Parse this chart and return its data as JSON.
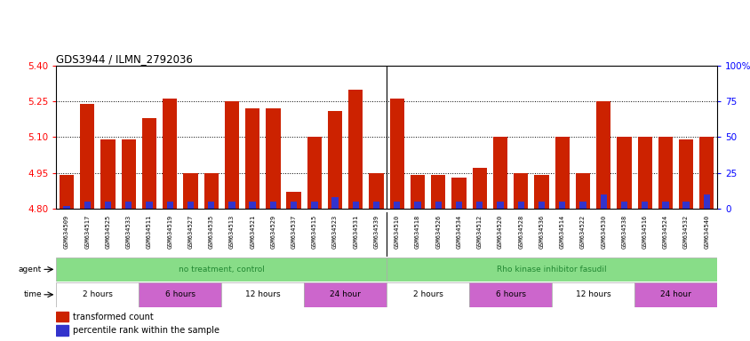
{
  "title": "GDS3944 / ILMN_2792036",
  "ylim_left": [
    4.8,
    5.4
  ],
  "ylim_right": [
    0,
    100
  ],
  "yticks_left": [
    4.8,
    4.95,
    5.1,
    5.25,
    5.4
  ],
  "yticks_right": [
    0,
    25,
    50,
    75,
    100
  ],
  "bar_width": 0.7,
  "bar_color_red": "#cc2200",
  "bar_color_blue": "#3333cc",
  "base": 4.8,
  "samples": [
    "GSM634509",
    "GSM634517",
    "GSM634525",
    "GSM634533",
    "GSM634511",
    "GSM634519",
    "GSM634527",
    "GSM634535",
    "GSM634513",
    "GSM634521",
    "GSM634529",
    "GSM634537",
    "GSM634515",
    "GSM634523",
    "GSM634531",
    "GSM634539",
    "GSM634510",
    "GSM634518",
    "GSM634526",
    "GSM634534",
    "GSM634512",
    "GSM634520",
    "GSM634528",
    "GSM634536",
    "GSM634514",
    "GSM634522",
    "GSM634530",
    "GSM634538",
    "GSM634516",
    "GSM634524",
    "GSM634532",
    "GSM634540"
  ],
  "red_values": [
    4.94,
    5.24,
    5.09,
    5.09,
    5.18,
    5.26,
    4.95,
    4.95,
    5.25,
    5.22,
    5.22,
    4.87,
    5.1,
    5.21,
    5.3,
    4.95,
    5.26,
    4.94,
    4.94,
    4.93,
    4.97,
    5.1,
    4.95,
    4.94,
    5.1,
    4.95,
    5.25,
    5.1,
    5.1,
    5.1,
    5.09,
    5.1
  ],
  "blue_values": [
    2,
    5,
    5,
    5,
    5,
    5,
    5,
    5,
    5,
    5,
    5,
    5,
    5,
    8,
    5,
    5,
    5,
    5,
    5,
    5,
    5,
    5,
    5,
    5,
    5,
    5,
    10,
    5,
    5,
    5,
    5,
    10
  ],
  "agent_labels": [
    "no treatment, control",
    "Rho kinase inhibitor fasudil"
  ],
  "time_groups": [
    {
      "label": "2 hours",
      "color": "#ffffff",
      "start": 0,
      "end": 4
    },
    {
      "label": "6 hours",
      "color": "#cc66cc",
      "start": 4,
      "end": 8
    },
    {
      "label": "12 hours",
      "color": "#ffffff",
      "start": 8,
      "end": 12
    },
    {
      "label": "24 hour",
      "color": "#cc66cc",
      "start": 12,
      "end": 16
    },
    {
      "label": "2 hours",
      "color": "#ffffff",
      "start": 16,
      "end": 20
    },
    {
      "label": "6 hours",
      "color": "#cc66cc",
      "start": 20,
      "end": 24
    },
    {
      "label": "12 hours",
      "color": "#ffffff",
      "start": 24,
      "end": 28
    },
    {
      "label": "24 hour",
      "color": "#cc66cc",
      "start": 28,
      "end": 32
    }
  ],
  "legend_red": "transformed count",
  "legend_blue": "percentile rank within the sample",
  "green_color": "#88dd88",
  "xtick_bg": "#d8d8d8"
}
